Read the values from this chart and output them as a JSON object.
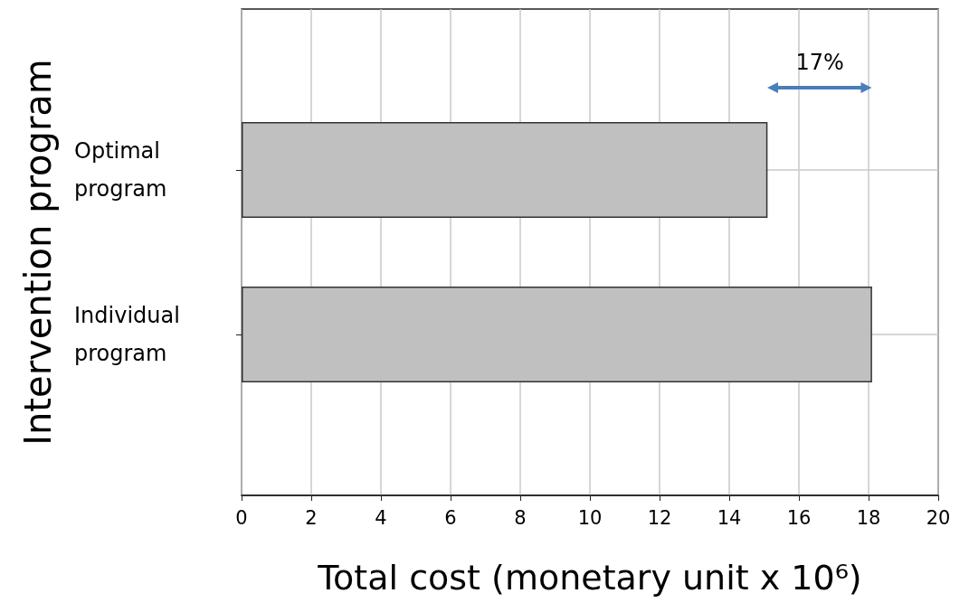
{
  "chart_data": {
    "type": "bar",
    "orientation": "horizontal",
    "xlabel": "Total cost (monetary unit x 10⁶)",
    "ylabel": "Intervention program",
    "categories": [
      "Optimal program",
      "Individual program"
    ],
    "values": [
      15.1,
      18.1
    ],
    "color": "#c0c0c0",
    "xlim": [
      0,
      20
    ],
    "xticks": [
      0,
      2,
      4,
      6,
      8,
      10,
      12,
      14,
      16,
      18,
      20
    ],
    "grid": true,
    "annotations": [
      "17%"
    ]
  }
}
